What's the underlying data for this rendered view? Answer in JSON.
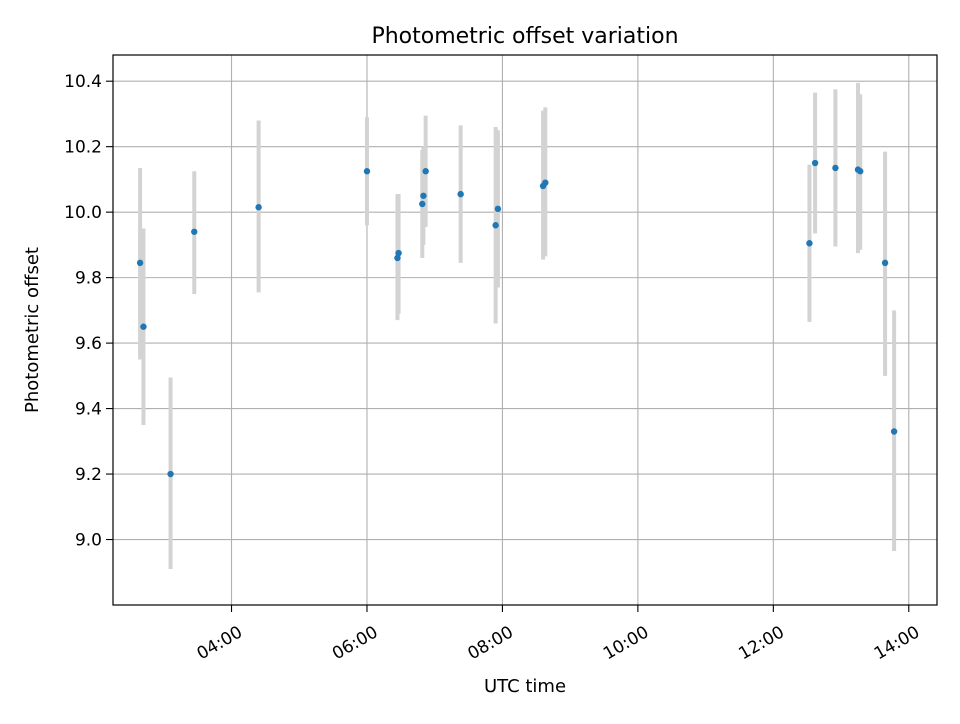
{
  "chart_data": {
    "type": "scatter",
    "title": "Photometric offset variation",
    "xlabel": "UTC time",
    "ylabel": "Photometric offset",
    "x_axis_kind": "time",
    "xlim": [
      "02:15",
      "14:25"
    ],
    "ylim": [
      8.8,
      10.48
    ],
    "x_ticks": [
      "04:00",
      "06:00",
      "08:00",
      "10:00",
      "12:00",
      "14:00"
    ],
    "y_ticks": [
      "9.0",
      "9.2",
      "9.4",
      "9.6",
      "9.8",
      "10.0",
      "10.2",
      "10.4"
    ],
    "grid": true,
    "marker_color": "#1f77b4",
    "errorbar_color": "#d3d3d3",
    "points": [
      {
        "x": "02:39",
        "y": 9.845,
        "err_low": 9.55,
        "err_high": 10.135
      },
      {
        "x": "02:42",
        "y": 9.65,
        "err_low": 9.35,
        "err_high": 9.95
      },
      {
        "x": "03:06",
        "y": 9.2,
        "err_low": 8.91,
        "err_high": 9.495
      },
      {
        "x": "03:27",
        "y": 9.94,
        "err_low": 9.75,
        "err_high": 10.125
      },
      {
        "x": "04:24",
        "y": 10.015,
        "err_low": 9.755,
        "err_high": 10.28
      },
      {
        "x": "06:00",
        "y": 10.125,
        "err_low": 9.96,
        "err_high": 10.29
      },
      {
        "x": "06:27",
        "y": 9.86,
        "err_low": 9.67,
        "err_high": 10.055
      },
      {
        "x": "06:28",
        "y": 9.875,
        "err_low": 9.69,
        "err_high": 10.055
      },
      {
        "x": "06:49",
        "y": 10.025,
        "err_low": 9.86,
        "err_high": 10.19
      },
      {
        "x": "06:50",
        "y": 10.05,
        "err_low": 9.9,
        "err_high": 10.2
      },
      {
        "x": "06:52",
        "y": 10.125,
        "err_low": 9.955,
        "err_high": 10.295
      },
      {
        "x": "07:23",
        "y": 10.055,
        "err_low": 9.845,
        "err_high": 10.265
      },
      {
        "x": "07:54",
        "y": 9.96,
        "err_low": 9.66,
        "err_high": 10.26
      },
      {
        "x": "07:56",
        "y": 10.01,
        "err_low": 9.77,
        "err_high": 10.25
      },
      {
        "x": "08:36",
        "y": 10.08,
        "err_low": 9.855,
        "err_high": 10.31
      },
      {
        "x": "08:38",
        "y": 10.09,
        "err_low": 9.865,
        "err_high": 10.32
      },
      {
        "x": "12:32",
        "y": 9.905,
        "err_low": 9.665,
        "err_high": 10.145
      },
      {
        "x": "12:37",
        "y": 10.15,
        "err_low": 9.935,
        "err_high": 10.365
      },
      {
        "x": "12:55",
        "y": 10.135,
        "err_low": 9.895,
        "err_high": 10.375
      },
      {
        "x": "13:15",
        "y": 10.13,
        "err_low": 9.875,
        "err_high": 10.395
      },
      {
        "x": "13:17",
        "y": 10.125,
        "err_low": 9.885,
        "err_high": 10.36
      },
      {
        "x": "13:39",
        "y": 9.845,
        "err_low": 9.5,
        "err_high": 10.185
      },
      {
        "x": "13:47",
        "y": 9.33,
        "err_low": 8.965,
        "err_high": 9.7
      }
    ]
  }
}
